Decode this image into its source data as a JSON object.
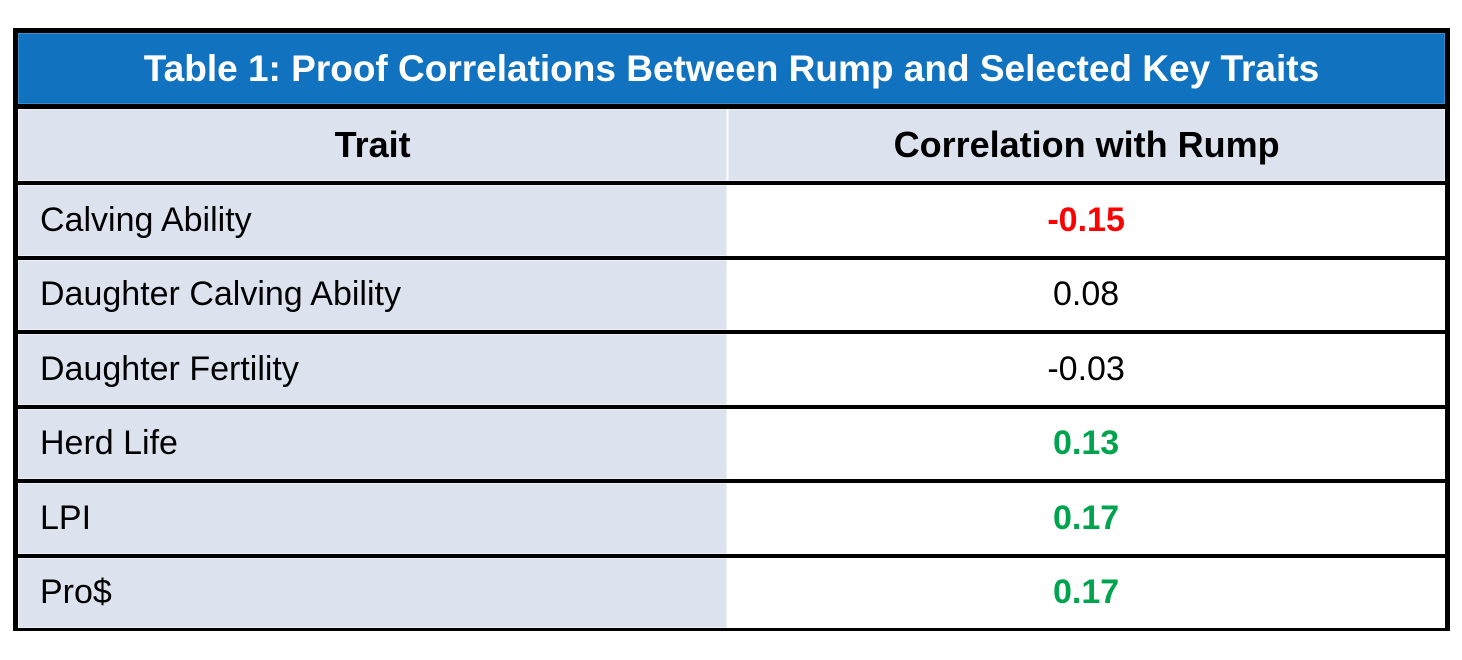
{
  "chart_data": {
    "type": "table",
    "title": "Table 1: Proof Correlations Between Rump and Selected Key Traits",
    "columns": [
      "Trait",
      "Correlation with Rump"
    ],
    "rows": [
      {
        "trait": "Calving Ability",
        "value": "-0.15",
        "value_style": "negative"
      },
      {
        "trait": "Daughter Calving Ability",
        "value": "0.08",
        "value_style": "neutral"
      },
      {
        "trait": "Daughter Fertility",
        "value": "-0.03",
        "value_style": "neutral"
      },
      {
        "trait": "Herd Life",
        "value": "0.13",
        "value_style": "positive"
      },
      {
        "trait": "LPI",
        "value": "0.17",
        "value_style": "positive"
      },
      {
        "trait": "Pro$",
        "value": "0.17",
        "value_style": "positive"
      }
    ],
    "layout": {
      "header_text_align": "center",
      "trait_text_align": "left",
      "value_text_align": "center"
    }
  },
  "colors": {
    "title_bar_bg": "#1173C0",
    "title_text": "#FFFFFF",
    "header_bg": "#DCE3EF",
    "trait_cell_bg": "#DCE3EF",
    "value_cell_bg": "#FFFFFF",
    "negative_value": "#FF0000",
    "positive_value": "#00A44F",
    "neutral_value": "#000000",
    "border": "#000000"
  }
}
